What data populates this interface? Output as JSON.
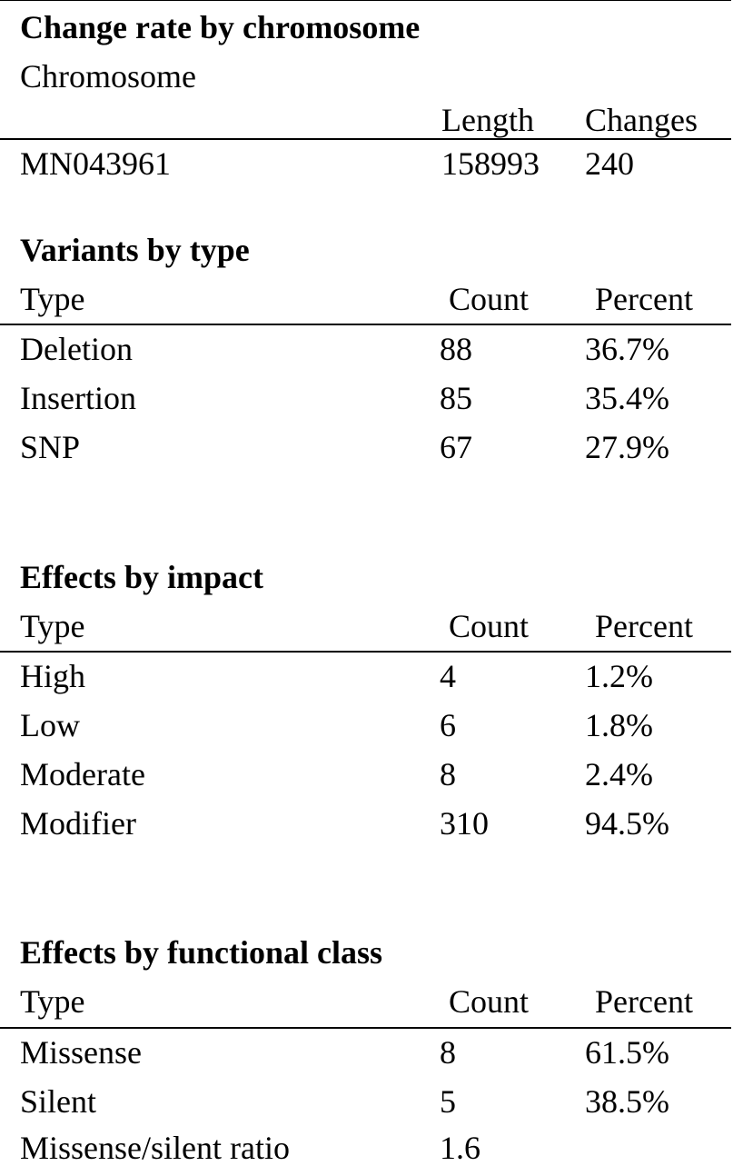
{
  "chromosome_section": {
    "title": "Change rate by chromosome",
    "header_label": "Chromosome",
    "col_length": "Length",
    "col_changes": "Changes",
    "rows": [
      {
        "chromosome": "MN043961",
        "length": "158993",
        "changes": "240"
      }
    ]
  },
  "variants_section": {
    "title": "Variants by type",
    "col_type": "Type",
    "col_count": "Count",
    "col_percent": "Percent",
    "rows": [
      {
        "type": "Deletion",
        "count": "88",
        "percent": "36.7%"
      },
      {
        "type": "Insertion",
        "count": "85",
        "percent": "35.4%"
      },
      {
        "type": "SNP",
        "count": "67",
        "percent": "27.9%"
      }
    ]
  },
  "impact_section": {
    "title": "Effects by impact",
    "col_type": "Type",
    "col_count": "Count",
    "col_percent": "Percent",
    "rows": [
      {
        "type": "High",
        "count": "4",
        "percent": "1.2%"
      },
      {
        "type": "Low",
        "count": "6",
        "percent": "1.8%"
      },
      {
        "type": "Moderate",
        "count": "8",
        "percent": "2.4%"
      },
      {
        "type": "Modifier",
        "count": "310",
        "percent": "94.5%"
      }
    ]
  },
  "functional_section": {
    "title": "Effects by functional class",
    "col_type": "Type",
    "col_count": "Count",
    "col_percent": "Percent",
    "rows": [
      {
        "type": "Missense",
        "count": "8",
        "percent": "61.5%"
      },
      {
        "type": "Silent",
        "count": "5",
        "percent": "38.5%"
      },
      {
        "type": "Missense/silent ratio",
        "count": "1.6",
        "percent": ""
      }
    ]
  }
}
